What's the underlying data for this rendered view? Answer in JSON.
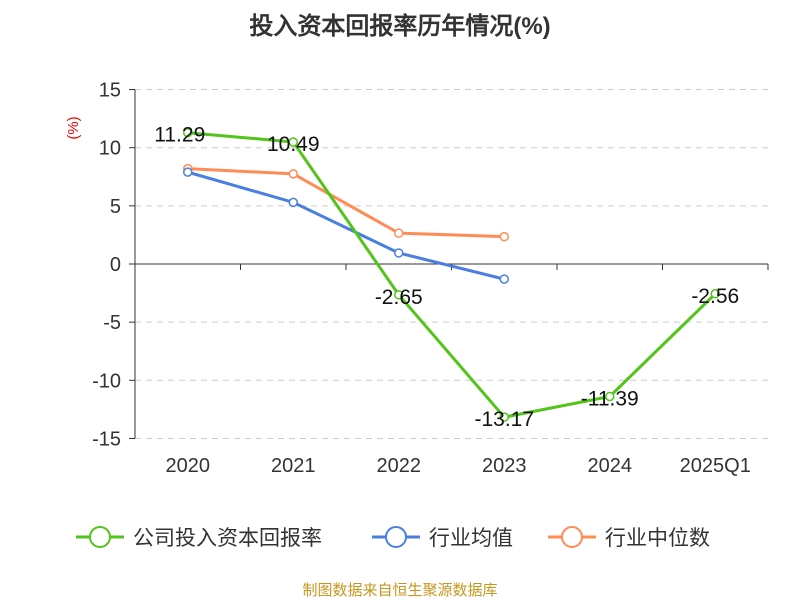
{
  "chart_data": {
    "type": "line",
    "title": "投入资本回报率历年情况(%)",
    "ylabel": "(%)",
    "xlabel": "",
    "categories": [
      "2020",
      "2021",
      "2022",
      "2023",
      "2024",
      "2025Q1"
    ],
    "ylim": [
      -15,
      15
    ],
    "yticks": [
      15,
      10,
      5,
      0,
      -5,
      -10,
      -15
    ],
    "grid": true,
    "legend_position": "bottom",
    "series": [
      {
        "name": "公司投入资本回报率",
        "color": "#52c41a",
        "values": [
          11.29,
          10.49,
          -2.65,
          -13.17,
          -11.39,
          -2.56
        ],
        "labels": [
          "11.29",
          "10.49",
          "-2.65",
          "-13.17",
          "-11.39",
          "-2.56"
        ]
      },
      {
        "name": "行业均值",
        "color": "#4a7fe0",
        "values": [
          7.9,
          5.3,
          0.95,
          -1.3,
          null,
          null
        ]
      },
      {
        "name": "行业中位数",
        "color": "#ff8c55",
        "values": [
          8.2,
          7.75,
          2.65,
          2.35,
          null,
          null
        ]
      }
    ],
    "source": "制图数据来自恒生聚源数据库"
  }
}
